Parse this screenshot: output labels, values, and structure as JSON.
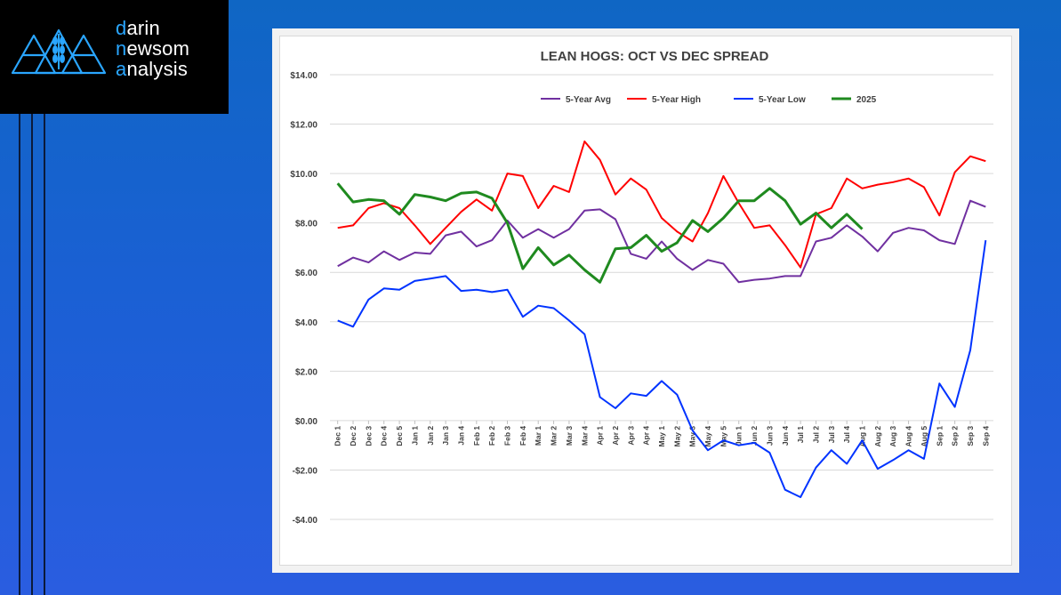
{
  "logo": {
    "line1_accent": "d",
    "line1_rest": "arin",
    "line2_accent": "n",
    "line2_rest": "ewsom",
    "line3_accent": "a",
    "line3_rest": "nalysis"
  },
  "colors": {
    "background": "#1c5fd6",
    "avg": "#7030a0",
    "high": "#ff0000",
    "low": "#0033ff",
    "current": "#1f8a1f",
    "accent": "#2aa6ff"
  },
  "chart_data": {
    "type": "line",
    "title": "LEAN HOGS: OCT VS DEC SPREAD",
    "xlabel": "",
    "ylabel": "",
    "ylim": [
      -4,
      14
    ],
    "yticks": [
      14,
      12,
      10,
      8,
      6,
      4,
      2,
      0,
      -2,
      -4
    ],
    "ytick_labels": [
      "$14.00",
      "$12.00",
      "$10.00",
      "$8.00",
      "$6.00",
      "$4.00",
      "$2.00",
      "$0.00",
      "-$2.00",
      "-$4.00"
    ],
    "grid": true,
    "legend_position": "top",
    "categories": [
      "Dec 1",
      "Dec 2",
      "Dec 3",
      "Dec 4",
      "Dec 5",
      "Jan 1",
      "Jan 2",
      "Jan 3",
      "Jan 4",
      "Feb 1",
      "Feb 2",
      "Feb 3",
      "Feb 4",
      "Mar 1",
      "Mar 2",
      "Mar 3",
      "Mar 4",
      "Apr 1",
      "Apr 2",
      "Apr 3",
      "Apr 4",
      "May 1",
      "May 2",
      "May 3",
      "May 4",
      "May 5",
      "Jun 1",
      "Jun 2",
      "Jun 3",
      "Jun 4",
      "Jul 1",
      "Jul 2",
      "Jul 3",
      "Jul 4",
      "Aug 1",
      "Aug 2",
      "Aug 3",
      "Aug 4",
      "Aug 5",
      "Sep 1",
      "Sep 2",
      "Sep 3",
      "Sep 4"
    ],
    "series": [
      {
        "name": "5-Year Avg",
        "color": "#7030a0",
        "values": [
          6.25,
          6.6,
          6.4,
          6.85,
          6.5,
          6.8,
          6.75,
          7.5,
          7.65,
          7.05,
          7.3,
          8.1,
          7.4,
          7.75,
          7.4,
          7.75,
          8.5,
          8.55,
          8.15,
          6.75,
          6.55,
          7.25,
          6.55,
          6.1,
          6.5,
          6.35,
          5.6,
          5.7,
          5.75,
          5.85,
          5.85,
          7.25,
          7.4,
          7.9,
          7.45,
          6.85,
          7.6,
          7.8,
          7.7,
          7.3,
          7.15,
          8.9,
          8.65
        ]
      },
      {
        "name": "5-Year High",
        "color": "#ff0000",
        "values": [
          7.8,
          7.9,
          8.6,
          8.8,
          8.6,
          7.9,
          7.15,
          7.8,
          8.45,
          8.95,
          8.5,
          10.0,
          9.9,
          8.6,
          9.5,
          9.25,
          11.3,
          10.55,
          9.15,
          9.8,
          9.35,
          8.2,
          7.65,
          7.25,
          8.4,
          9.9,
          8.8,
          7.8,
          7.9,
          7.1,
          6.2,
          8.35,
          8.6,
          9.8,
          9.4,
          9.55,
          9.65,
          9.8,
          9.45,
          8.3,
          10.05,
          10.7,
          10.5
        ]
      },
      {
        "name": "5-Year Low",
        "color": "#0033ff",
        "values": [
          4.05,
          3.8,
          4.9,
          5.35,
          5.3,
          5.65,
          5.75,
          5.85,
          5.25,
          5.3,
          5.2,
          5.3,
          4.2,
          4.65,
          4.55,
          4.05,
          3.5,
          0.95,
          0.5,
          1.1,
          1.0,
          1.6,
          1.05,
          -0.4,
          -1.2,
          -0.8,
          -1.0,
          -0.9,
          -1.3,
          -2.8,
          -3.1,
          -1.9,
          -1.2,
          -1.75,
          -0.8,
          -1.95,
          -1.6,
          -1.2,
          -1.55,
          1.5,
          0.55,
          2.85,
          7.3
        ]
      },
      {
        "name": "2025",
        "color": "#1f8a1f",
        "values": [
          9.6,
          8.85,
          8.95,
          8.9,
          8.35,
          9.15,
          9.05,
          8.9,
          9.2,
          9.25,
          9.0,
          8.0,
          6.15,
          7.0,
          6.3,
          6.7,
          6.1,
          5.6,
          6.95,
          7.0,
          7.5,
          6.85,
          7.2,
          8.1,
          7.65,
          8.2,
          8.9,
          8.9,
          9.4,
          8.9,
          7.95,
          8.4,
          7.8,
          8.35,
          7.75,
          null,
          null,
          null,
          null,
          null,
          null,
          null,
          null
        ]
      }
    ]
  }
}
